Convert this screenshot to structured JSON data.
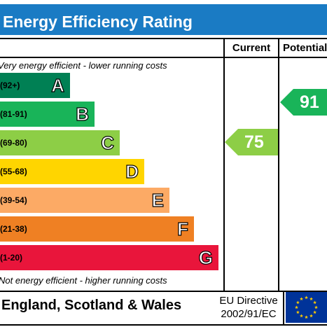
{
  "title": "Energy Efficiency Rating",
  "columns": {
    "current": "Current",
    "potential": "Potential"
  },
  "notes": {
    "top": "Very energy efficient - lower running costs",
    "bottom": "Not energy efficient - higher running costs"
  },
  "bands": [
    {
      "range": "(92+)",
      "letter": "A",
      "color": "#008054"
    },
    {
      "range": "(81-91)",
      "letter": "B",
      "color": "#19b459"
    },
    {
      "range": "(69-80)",
      "letter": "C",
      "color": "#8dce46"
    },
    {
      "range": "(55-68)",
      "letter": "D",
      "color": "#ffd500"
    },
    {
      "range": "(39-54)",
      "letter": "E",
      "color": "#fcaa65"
    },
    {
      "range": "(21-38)",
      "letter": "F",
      "color": "#ef8023"
    },
    {
      "range": "(1-20)",
      "letter": "G",
      "color": "#e9153b"
    }
  ],
  "ratings": {
    "current": {
      "value": "75",
      "band": "C",
      "color": "#8dce46"
    },
    "potential": {
      "value": "91",
      "band": "B",
      "color": "#19b459"
    }
  },
  "footer": {
    "country": "England, Scotland & Wales",
    "directive_line1": "EU Directive",
    "directive_line2": "2002/91/EC",
    "flag_color": "#003399",
    "star_color": "#ffcc00"
  }
}
